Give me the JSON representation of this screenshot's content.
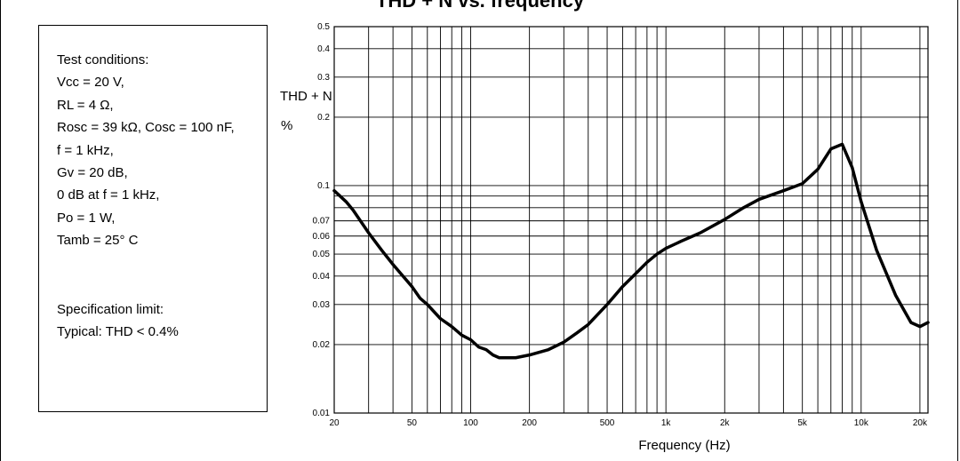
{
  "title": "THD + N vs. frequency",
  "conditions": {
    "lines": [
      "Test conditions:",
      "Vcc = 20 V,",
      "RL = 4 Ω,",
      "Rosc = 39 kΩ, Cosc = 100 nF,",
      "f = 1 kHz,",
      "Gv = 20 dB,",
      "0 dB at f = 1 kHz,",
      "Po = 1 W,",
      "Tamb = 25° C"
    ],
    "spec_lines": [
      "Specification limit:",
      "Typical: THD < 0.4%"
    ]
  },
  "chart_data": {
    "type": "line",
    "title": "THD + N vs. frequency",
    "xlabel": "Frequency (Hz)",
    "ylabel_line1": "THD + N",
    "ylabel_line2": "%",
    "xscale": "log",
    "yscale": "log",
    "xlim": [
      20,
      22000
    ],
    "ylim": [
      0.01,
      0.5
    ],
    "grid": true,
    "x_ticks": [
      {
        "value": 20,
        "label": "20"
      },
      {
        "value": 50,
        "label": "50"
      },
      {
        "value": 100,
        "label": "100"
      },
      {
        "value": 200,
        "label": "200"
      },
      {
        "value": 500,
        "label": "500"
      },
      {
        "value": 1000,
        "label": "1k"
      },
      {
        "value": 2000,
        "label": "2k"
      },
      {
        "value": 5000,
        "label": "5k"
      },
      {
        "value": 10000,
        "label": "10k"
      },
      {
        "value": 20000,
        "label": "20k"
      }
    ],
    "x_grid": [
      20,
      30,
      40,
      50,
      60,
      70,
      80,
      90,
      100,
      200,
      300,
      400,
      500,
      600,
      700,
      800,
      900,
      1000,
      2000,
      3000,
      4000,
      5000,
      6000,
      7000,
      8000,
      9000,
      10000,
      20000
    ],
    "y_ticks": [
      {
        "value": 0.01,
        "label": "0.01"
      },
      {
        "value": 0.02,
        "label": "0.02"
      },
      {
        "value": 0.03,
        "label": "0.03"
      },
      {
        "value": 0.04,
        "label": "0.04"
      },
      {
        "value": 0.05,
        "label": "0.05"
      },
      {
        "value": 0.06,
        "label": "0.06"
      },
      {
        "value": 0.07,
        "label": "0.07"
      },
      {
        "value": 0.1,
        "label": "0.1"
      },
      {
        "value": 0.2,
        "label": "0.2"
      },
      {
        "value": 0.3,
        "label": "0.3"
      },
      {
        "value": 0.4,
        "label": "0.4"
      },
      {
        "value": 0.5,
        "label": "0.5"
      }
    ],
    "y_grid": [
      0.01,
      0.02,
      0.03,
      0.04,
      0.05,
      0.06,
      0.07,
      0.08,
      0.09,
      0.1,
      0.2,
      0.3,
      0.4,
      0.5
    ],
    "series": [
      {
        "x": [
          20,
          23,
          25,
          30,
          35,
          40,
          45,
          50,
          55,
          60,
          70,
          80,
          90,
          100,
          110,
          120,
          130,
          140,
          150,
          170,
          200,
          250,
          300,
          350,
          400,
          500,
          600,
          700,
          800,
          900,
          1000,
          1200,
          1500,
          2000,
          2500,
          3000,
          4000,
          5000,
          6000,
          7000,
          8000,
          9000,
          10000,
          12000,
          15000,
          18000,
          20000,
          22000
        ],
        "y": [
          0.095,
          0.085,
          0.078,
          0.062,
          0.052,
          0.045,
          0.04,
          0.036,
          0.032,
          0.03,
          0.026,
          0.024,
          0.022,
          0.021,
          0.0195,
          0.019,
          0.018,
          0.0175,
          0.0175,
          0.0175,
          0.018,
          0.019,
          0.0205,
          0.0225,
          0.0245,
          0.03,
          0.036,
          0.041,
          0.046,
          0.05,
          0.053,
          0.057,
          0.062,
          0.071,
          0.08,
          0.087,
          0.095,
          0.102,
          0.118,
          0.145,
          0.152,
          0.12,
          0.085,
          0.052,
          0.033,
          0.025,
          0.024,
          0.025
        ]
      }
    ],
    "line_color": "#000000",
    "grid_color": "#000000"
  }
}
